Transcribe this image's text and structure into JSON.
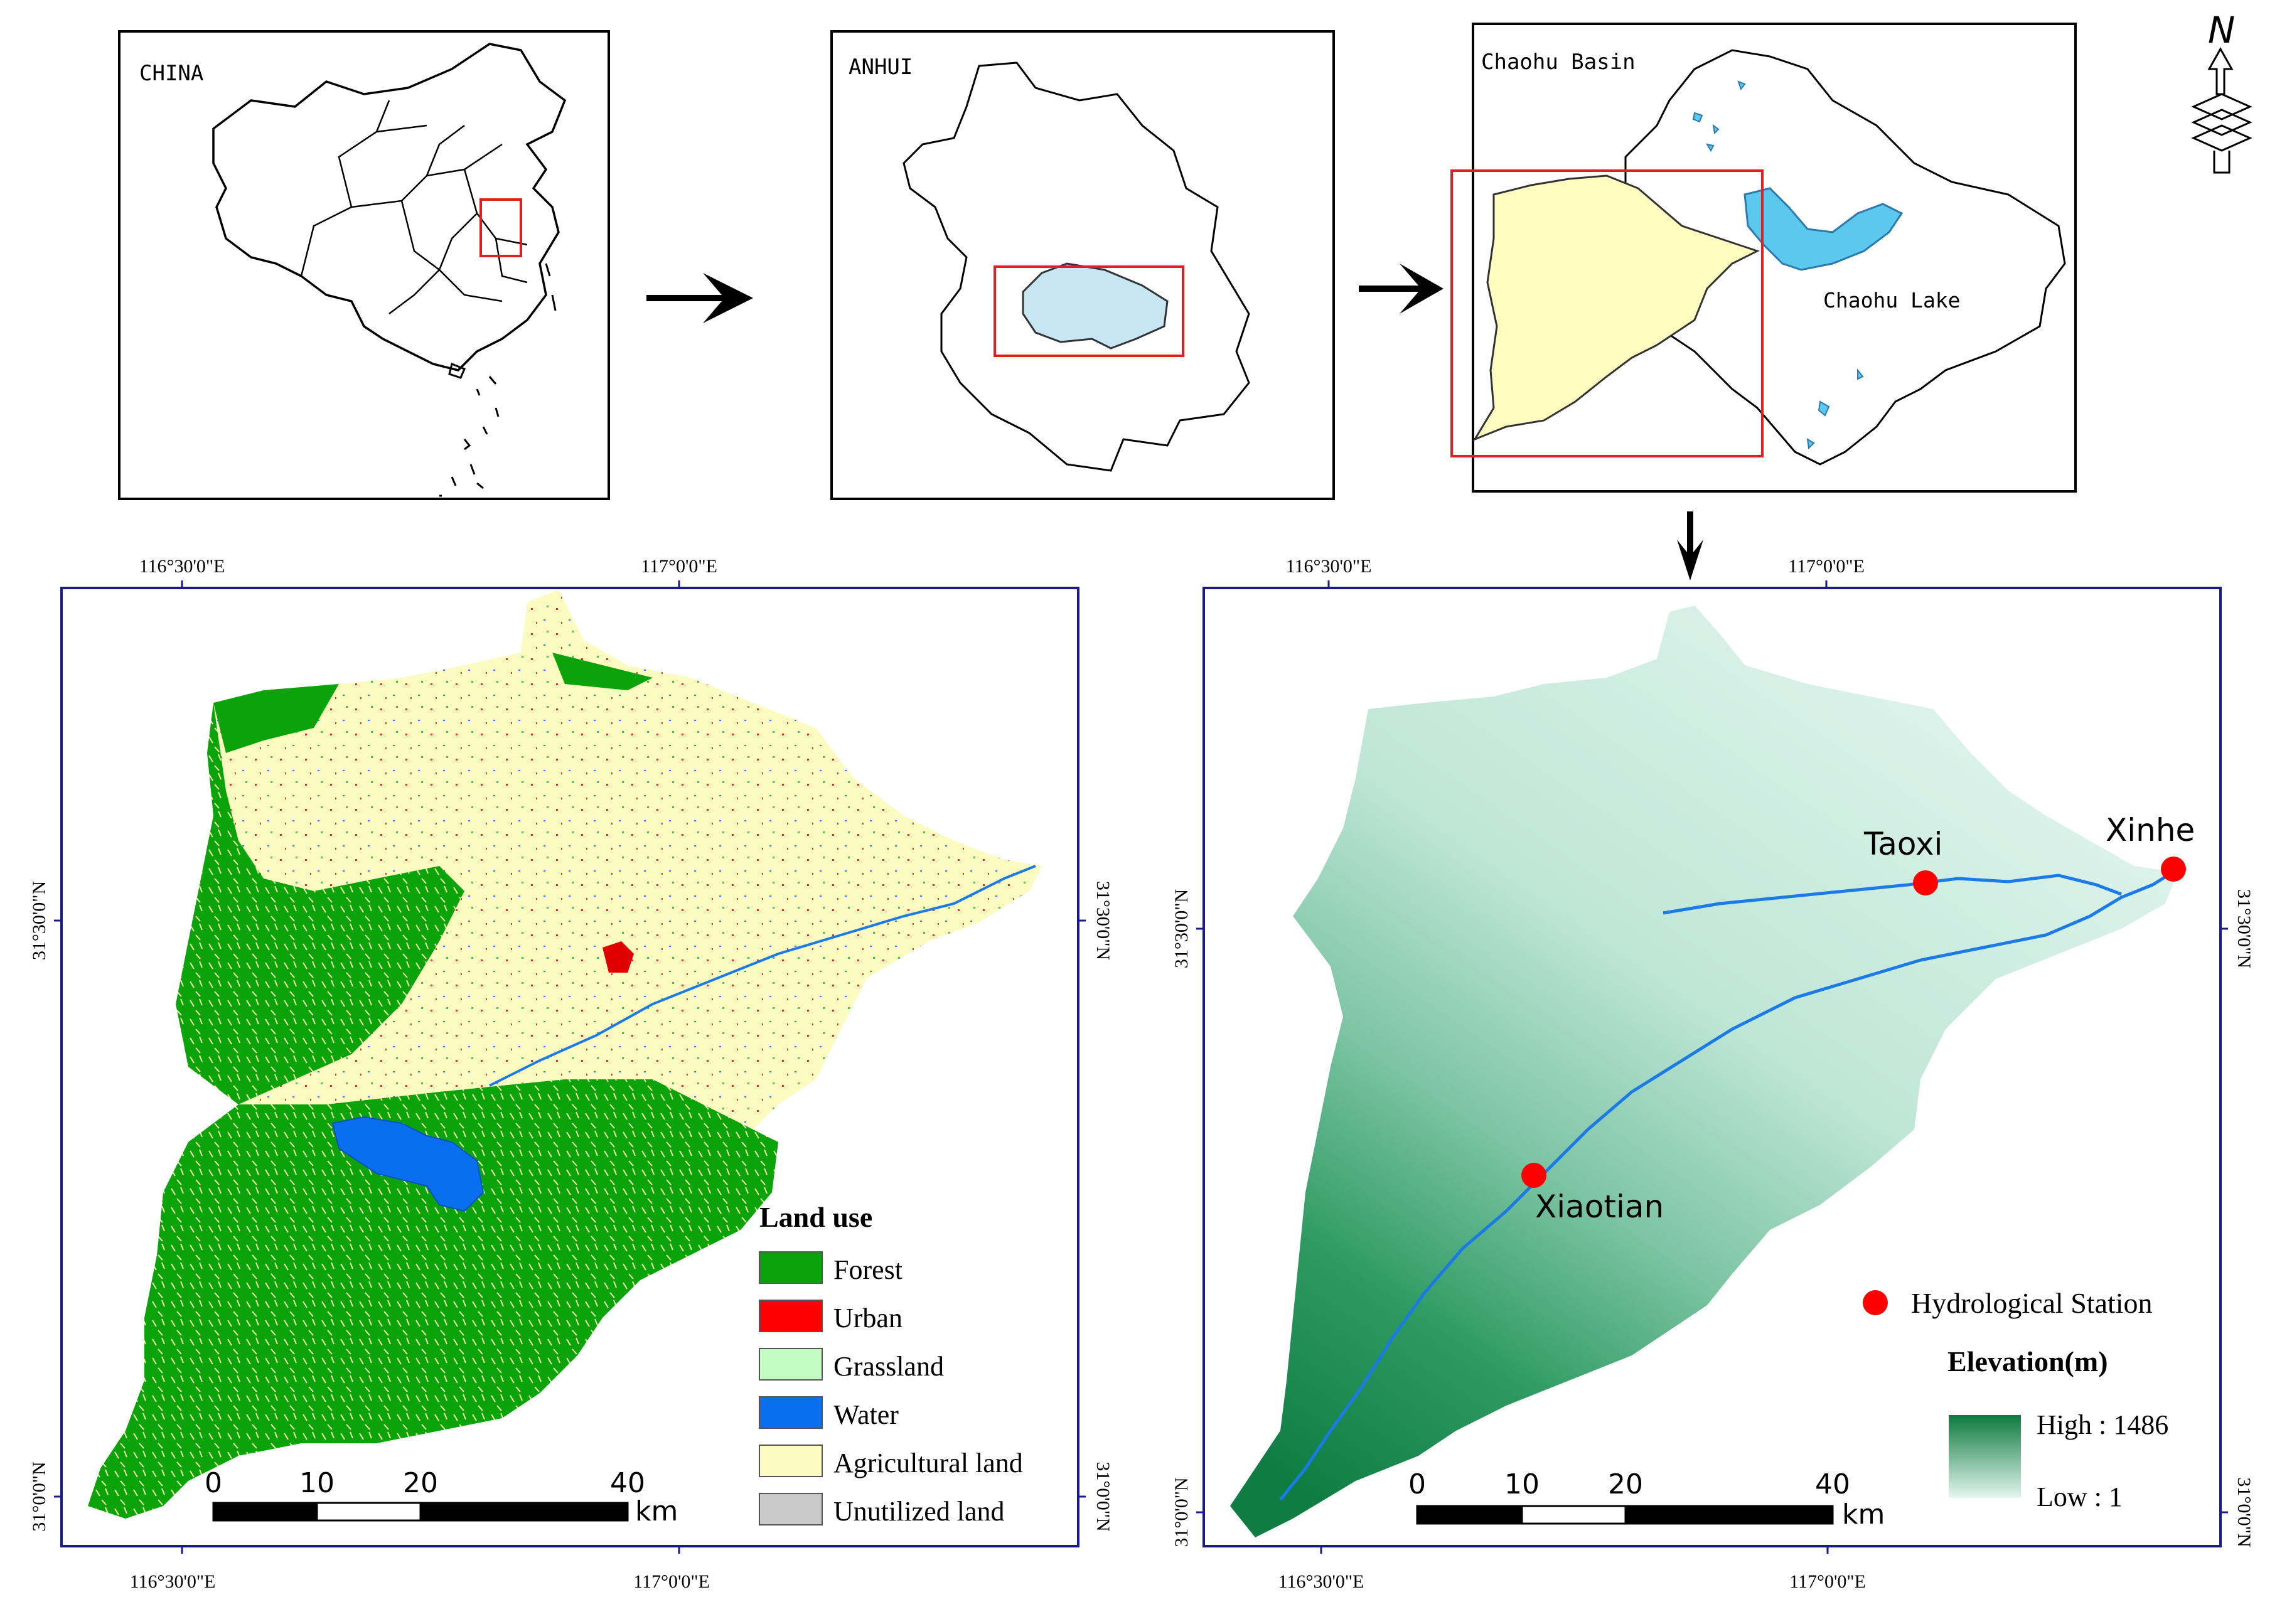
{
  "insets": {
    "china": {
      "label": "CHINA"
    },
    "anhui": {
      "label": "ANHUI"
    },
    "chaohu": {
      "label": "Chaohu Basin",
      "lake_label": "Chaohu Lake"
    }
  },
  "north_arrow": {
    "letter": "N"
  },
  "landuse_map": {
    "top_ticks": [
      "116°30'0\"E",
      "117°0'0\"E"
    ],
    "bottom_ticks": [
      "116°30'0\"E",
      "117°0'0\"E"
    ],
    "left_ticks": [
      "31°30'0\"N",
      "31°0'0\"N"
    ],
    "right_ticks": [
      "31°30'0\"N",
      "31°0'0\"N"
    ],
    "legend": {
      "title": "Land use",
      "items": [
        {
          "label": "Forest",
          "color": "#0aa30a"
        },
        {
          "label": "Urban",
          "color": "#ff0000"
        },
        {
          "label": "Grassland",
          "color": "#c3fcc3"
        },
        {
          "label": "Water",
          "color": "#0a6ef0"
        },
        {
          "label": "Agricultural land",
          "color": "#fdfcc0"
        },
        {
          "label": "Unutilized land",
          "color": "#c9c9c9"
        }
      ]
    },
    "scalebar": {
      "ticks": [
        "0",
        "10",
        "20",
        "40"
      ],
      "unit": "km"
    }
  },
  "elevation_map": {
    "top_ticks": [
      "116°30'0\"E",
      "117°0'0\"E"
    ],
    "bottom_ticks": [
      "116°30'0\"E",
      "117°0'0\"E"
    ],
    "left_ticks": [
      "31°30'0\"N",
      "31°0'0\"N"
    ],
    "right_ticks": [
      "31°30'0\"N",
      "31°0'0\"N"
    ],
    "stations": [
      "Taoxi",
      "Xinhe",
      "Xiaotian"
    ],
    "station_color": "#ff0000",
    "legend": {
      "station_label": "Hydrological Station",
      "elevation_title": "Elevation(m)",
      "high_label": "High : 1486",
      "low_label": "Low : 1",
      "high_color": "#0c7a3e",
      "low_color": "#e4f6ef"
    },
    "scalebar": {
      "ticks": [
        "0",
        "10",
        "20",
        "40"
      ],
      "unit": "km"
    }
  },
  "colors": {
    "frame": "#1a1a8c",
    "river": "#1a7ae8",
    "inset_red": "#e02020",
    "lake_light": "#c6e6f4",
    "lake_dark": "#5cc8ee",
    "basin_yellow": "#fffcc0"
  }
}
